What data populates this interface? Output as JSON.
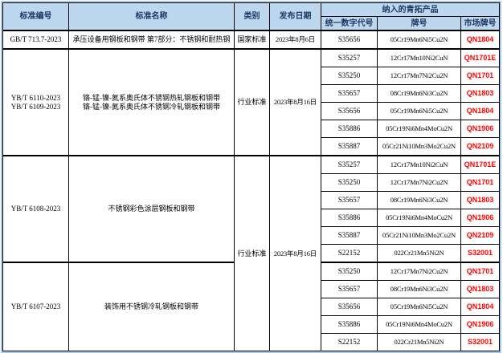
{
  "colors": {
    "header_bg": "#BDD7EE",
    "header_text": "#1F3864",
    "market_grade_red": "#FF0000",
    "grid_line": "#000000",
    "outer_border": "#A9C9EC"
  },
  "table": {
    "headers": {
      "standard_no": "标准编号",
      "standard_name": "标准名称",
      "category": "类别",
      "publish_date": "发布日期",
      "products_group": "纳入的青拓产品",
      "unified_code": "统一数字代号",
      "grade": "牌号",
      "market_grade": "市场牌号"
    },
    "blocks": [
      {
        "standard_no": "GB/T 713.7-2023",
        "standard_name": "承压设备用钢板和钢带 第7部分：不锈钢和耐热钢",
        "category": "国家标准",
        "publish_date": "2023年8月6日",
        "merge_category_with_previous": false,
        "products": [
          {
            "code": "S35656",
            "grade": "05Cr19Mn6Ni5Cu2N",
            "market_grade": "QN1804"
          }
        ]
      },
      {
        "standard_no": "YB/T 6110-2023\nYB/T 6109-2023",
        "standard_name": "铬-锰-镍-氮系奥氏体不锈钢热轧钢板和钢带\n铬-锰-镍-氮系奥氏体不锈钢冷轧钢板和钢带",
        "category": "行业标准",
        "publish_date": "2023年8月16日",
        "merge_category_with_previous": false,
        "products": [
          {
            "code": "S35257",
            "grade": "12Cr17Mn10Ni2CuN",
            "market_grade": "QN1701E"
          },
          {
            "code": "S35250",
            "grade": "12Cr17Mn7Ni2Cu2N",
            "market_grade": "QN1701"
          },
          {
            "code": "S35657",
            "grade": "08Cr19Mn6Ni3Cu2N",
            "market_grade": "QN1803"
          },
          {
            "code": "S35656",
            "grade": "05Cr19Mn6Ni5Cu2N",
            "market_grade": "QN1804"
          },
          {
            "code": "S35886",
            "grade": "05Cr19Ni6Mn4MoCu2N",
            "market_grade": "QN1906"
          },
          {
            "code": "S35887",
            "grade": "05Cr21Ni10Mn3Mo2Cu2N",
            "market_grade": "QN2109"
          }
        ]
      },
      {
        "standard_no": "YB/T 6108-2023",
        "standard_name": "不锈钢彩色涂层钢板和钢带",
        "category": "行业标准",
        "publish_date": "2023年8月16日",
        "merge_category_with_previous": false,
        "products": [
          {
            "code": "S35257",
            "grade": "12Cr17Mn10Ni2CuN",
            "market_grade": "QN1701E"
          },
          {
            "code": "S35250",
            "grade": "12Cr17Mn7Ni2Cu2N",
            "market_grade": "QN1701"
          },
          {
            "code": "S35657",
            "grade": "08Cr19Mn6Ni3Cu2N",
            "market_grade": "QN1803"
          },
          {
            "code": "S35886",
            "grade": "05Cr19Ni6Mn4MoCu2N",
            "market_grade": "QN1906"
          },
          {
            "code": "S35887",
            "grade": "05Cr21Ni10Mn3Mo2Cu2N",
            "market_grade": "QN2109"
          },
          {
            "code": "S22152",
            "grade": "022Cr21Mn5Ni2N",
            "market_grade": "S32001"
          }
        ]
      },
      {
        "standard_no": "YB/T 6107-2023",
        "standard_name": "装饰用不锈钢冷轧钢板和钢带",
        "category": "行业标准",
        "publish_date": "2023年8月16日",
        "merge_category_with_previous": true,
        "products": [
          {
            "code": "S35250",
            "grade": "12Cr17Mn7Ni2Cu2N",
            "market_grade": "QN1701"
          },
          {
            "code": "S35657",
            "grade": "08Cr19Mn6Ni3Cu2N",
            "market_grade": "QN1803"
          },
          {
            "code": "S35656",
            "grade": "05Cr19Mn6Ni5Cu2N",
            "market_grade": "QN1804"
          },
          {
            "code": "S35886",
            "grade": "05Cr19Ni6Mn4MoCu2N",
            "market_grade": "QN1906"
          },
          {
            "code": "S22152",
            "grade": "022Cr21Mn5Ni2N",
            "market_grade": "S32001"
          }
        ]
      }
    ]
  }
}
